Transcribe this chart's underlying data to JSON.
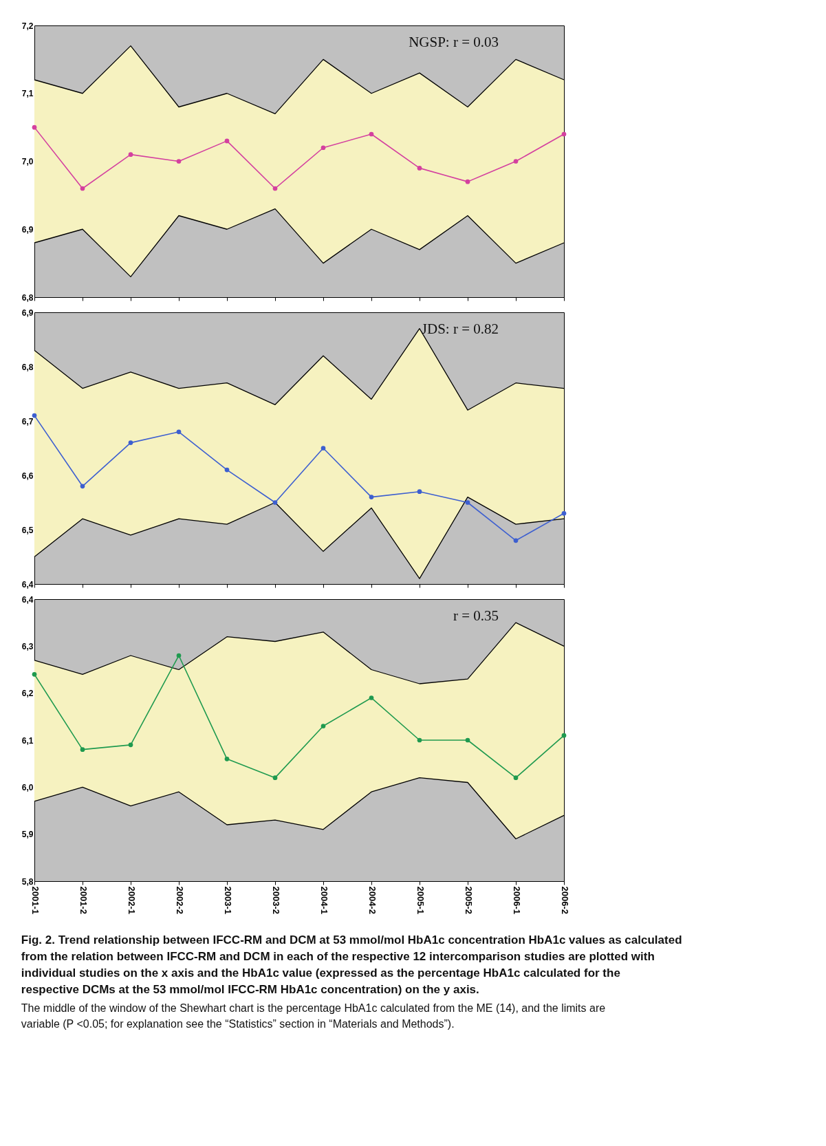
{
  "chart_data": [
    {
      "type": "line",
      "categories": [
        "2001-1",
        "2001-2",
        "2002-1",
        "2002-2",
        "2003-1",
        "2003-2",
        "2004-1",
        "2004-2",
        "2005-1",
        "2005-2",
        "2006-1",
        "2006-2"
      ],
      "ylim": [
        6.8,
        7.2
      ],
      "yticks": [
        {
          "value": 6.8,
          "label": "6,8"
        },
        {
          "value": 6.9,
          "label": "6,9"
        },
        {
          "value": 7.0,
          "label": "7,0"
        },
        {
          "value": 7.1,
          "label": "7,1"
        },
        {
          "value": 7.2,
          "label": "7,2"
        }
      ],
      "tick_labels": "y",
      "grid": false,
      "marker": "circle",
      "line_style": "solid",
      "annotations": [
        "NGSP: r = 0.03"
      ],
      "series": [
        {
          "color": "#d4409f",
          "values": [
            7.05,
            6.96,
            7.01,
            7.0,
            7.03,
            6.96,
            7.02,
            7.04,
            6.99,
            6.97,
            7.0,
            7.04
          ],
          "lower": [
            6.88,
            6.9,
            6.83,
            6.92,
            6.9,
            6.93,
            6.85,
            6.9,
            6.87,
            6.92,
            6.85,
            6.88
          ],
          "upper": [
            7.12,
            7.1,
            7.17,
            7.08,
            7.1,
            7.07,
            7.15,
            7.1,
            7.13,
            7.08,
            7.15,
            7.12
          ]
        },
        {
          "color": "#000000",
          "marker": "none",
          "values": [
            7.12,
            7.1,
            7.17,
            7.08,
            7.1,
            7.07,
            7.15,
            7.1,
            7.13,
            7.08,
            7.15,
            7.12
          ]
        },
        {
          "color": "#000000",
          "marker": "none",
          "values": [
            6.88,
            6.9,
            6.83,
            6.92,
            6.9,
            6.93,
            6.85,
            6.9,
            6.87,
            6.92,
            6.85,
            6.88
          ]
        }
      ]
    },
    {
      "type": "line",
      "categories": [
        "2001-1",
        "2001-2",
        "2002-1",
        "2002-2",
        "2003-1",
        "2003-2",
        "2004-1",
        "2004-2",
        "2005-1",
        "2005-2",
        "2006-1",
        "2006-2"
      ],
      "ylim": [
        6.4,
        6.9
      ],
      "yticks": [
        {
          "value": 6.4,
          "label": "6,4"
        },
        {
          "value": 6.5,
          "label": "6,5"
        },
        {
          "value": 6.6,
          "label": "6,6"
        },
        {
          "value": 6.7,
          "label": "6,7"
        },
        {
          "value": 6.8,
          "label": "6,8"
        },
        {
          "value": 6.9,
          "label": "6,9"
        }
      ],
      "tick_labels": "y",
      "grid": false,
      "marker": "circle",
      "line_style": "solid",
      "annotations": [
        "JDS: r = 0.82"
      ],
      "series": [
        {
          "color": "#3d5fd0",
          "values": [
            6.71,
            6.58,
            6.66,
            6.68,
            6.61,
            6.55,
            6.65,
            6.56,
            6.57,
            6.55,
            6.48,
            6.53
          ],
          "lower": [
            6.45,
            6.52,
            6.49,
            6.52,
            6.51,
            6.55,
            6.46,
            6.54,
            6.41,
            6.56,
            6.51,
            6.52
          ],
          "upper": [
            6.83,
            6.76,
            6.79,
            6.76,
            6.77,
            6.73,
            6.82,
            6.74,
            6.87,
            6.72,
            6.77,
            6.76
          ]
        },
        {
          "color": "#000000",
          "marker": "none",
          "values": [
            6.83,
            6.76,
            6.79,
            6.76,
            6.77,
            6.73,
            6.82,
            6.74,
            6.87,
            6.72,
            6.77,
            6.76
          ]
        },
        {
          "color": "#000000",
          "marker": "none",
          "values": [
            6.45,
            6.52,
            6.49,
            6.52,
            6.51,
            6.55,
            6.46,
            6.54,
            6.41,
            6.56,
            6.51,
            6.52
          ]
        }
      ]
    },
    {
      "type": "line",
      "categories": [
        "2001-1",
        "2001-2",
        "2002-1",
        "2002-2",
        "2003-1",
        "2003-2",
        "2004-1",
        "2004-2",
        "2005-1",
        "2005-2",
        "2006-1",
        "2006-2"
      ],
      "ylim": [
        5.8,
        6.4
      ],
      "yticks": [
        {
          "value": 5.8,
          "label": "5,8"
        },
        {
          "value": 5.9,
          "label": "5,9"
        },
        {
          "value": 6.0,
          "label": "6,0"
        },
        {
          "value": 6.1,
          "label": "6,1"
        },
        {
          "value": 6.2,
          "label": "6,2"
        },
        {
          "value": 6.3,
          "label": "6,3"
        },
        {
          "value": 6.4,
          "label": "6,4"
        }
      ],
      "grid": false,
      "marker": "circle",
      "line_style": "solid",
      "title": "Fig. 2. Trend relationship between IFCC-RM and DCM at 53 mmol/mol HbA1c concentration HbA1c values as calculated from the relation between IFCC-RM and DCM in each of the respective 12 intercomparison studies are plotted with individual studies on the x axis and the HbA1c value (expressed as the percentage HbA1c calculated for the respective DCMs at the 53 mmol/mol IFCC-RM HbA1c concentration) on the y axis.",
      "annotations": [
        "r = 0.35",
        "The middle of the window of the Shewhart chart is the percentage HbA1c calculated from the ME (14), and the limits are variable (P <0.05; for explanation see the “Statistics” section in “Materials and Methods”)."
      ],
      "series": [
        {
          "color": "#1f9a4f",
          "values": [
            6.24,
            6.08,
            6.09,
            6.28,
            6.06,
            6.02,
            6.13,
            6.19,
            6.1,
            6.1,
            6.02,
            6.11
          ],
          "lower": [
            5.97,
            6.0,
            5.96,
            5.99,
            5.92,
            5.93,
            5.91,
            5.99,
            6.02,
            6.01,
            5.89,
            5.94
          ],
          "upper": [
            6.27,
            6.24,
            6.28,
            6.25,
            6.32,
            6.31,
            6.33,
            6.25,
            6.22,
            6.23,
            6.35,
            6.3
          ]
        },
        {
          "color": "#000000",
          "marker": "none",
          "values": [
            6.27,
            6.24,
            6.28,
            6.25,
            6.32,
            6.31,
            6.33,
            6.25,
            6.22,
            6.23,
            6.35,
            6.3
          ]
        },
        {
          "color": "#000000",
          "marker": "none",
          "values": [
            5.97,
            6.0,
            5.96,
            5.99,
            5.92,
            5.93,
            5.91,
            5.99,
            6.02,
            6.01,
            5.89,
            5.94
          ]
        }
      ]
    }
  ]
}
